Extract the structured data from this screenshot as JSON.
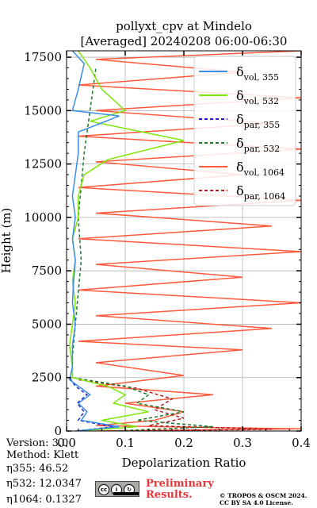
{
  "title": {
    "line1": "pollyxt_cpv at Mindelo",
    "line2": "[Averaged] 20240208 06:00-06:30"
  },
  "footer": {
    "version": "Version: 3.0",
    "method": "Method: Klett",
    "eta355": "η355:  46.52",
    "eta532": "η532: 12.0347",
    "eta1064": "η1064: 0.1327",
    "preliminary_line1": "Preliminary",
    "preliminary_line2": "Results.",
    "copyright_line1": "© TROPOS & OSCM 2024.",
    "copyright_line2": "CC BY SA 4.0 License.",
    "badge_icon": "cc-by-sa-icon"
  },
  "chart_data": {
    "type": "line",
    "xlabel": "Depolarization Ratio",
    "ylabel": "Height (m)",
    "xlim": [
      0.0,
      0.4
    ],
    "ylim": [
      0,
      17800
    ],
    "xticks": [
      0.0,
      0.1,
      0.2,
      0.3,
      0.4
    ],
    "xtick_labels": [
      "0.0",
      "0.1",
      "0.2",
      "0.3",
      "0.4"
    ],
    "yticks": [
      0,
      2500,
      5000,
      7500,
      10000,
      12500,
      15000,
      17500
    ],
    "ytick_labels": [
      "0",
      "2500",
      "5000",
      "7500",
      "10000",
      "12500",
      "15000",
      "17500"
    ],
    "grid": true,
    "legend_position": "top-right",
    "series": [
      {
        "name": "vol355",
        "legend_base": "δ",
        "legend_sub": "vol, 355",
        "color": "#3a8ee6",
        "dash": "solid",
        "points": [
          [
            0.015,
            0
          ],
          [
            0.09,
            200
          ],
          [
            0.025,
            500
          ],
          [
            0.035,
            900
          ],
          [
            0.02,
            1300
          ],
          [
            0.04,
            1700
          ],
          [
            0.02,
            2100
          ],
          [
            0.005,
            2400
          ],
          [
            0.01,
            3000
          ],
          [
            0.01,
            4000
          ],
          [
            0.015,
            5000
          ],
          [
            0.01,
            6000
          ],
          [
            0.012,
            7000
          ],
          [
            0.015,
            8000
          ],
          [
            0.01,
            9000
          ],
          [
            0.015,
            10000
          ],
          [
            0.01,
            11000
          ],
          [
            0.015,
            12000
          ],
          [
            0.02,
            13000
          ],
          [
            0.02,
            14000
          ],
          [
            0.09,
            14750
          ],
          [
            0.01,
            15000
          ],
          [
            0.02,
            16000
          ],
          [
            0.03,
            17200
          ],
          [
            0.01,
            17800
          ]
        ]
      },
      {
        "name": "vol532",
        "legend_base": "δ",
        "legend_sub": "vol, 532",
        "color": "#7fe60a",
        "dash": "solid",
        "points": [
          [
            0.02,
            0
          ],
          [
            0.12,
            200
          ],
          [
            0.06,
            500
          ],
          [
            0.14,
            900
          ],
          [
            0.08,
            1300
          ],
          [
            0.1,
            1700
          ],
          [
            0.07,
            2100
          ],
          [
            0.01,
            2500
          ],
          [
            0.01,
            3000
          ],
          [
            0.005,
            4000
          ],
          [
            0.01,
            5000
          ],
          [
            0.015,
            6000
          ],
          [
            0.01,
            7000
          ],
          [
            0.015,
            8000
          ],
          [
            0.01,
            9000
          ],
          [
            0.02,
            10000
          ],
          [
            0.02,
            11000
          ],
          [
            0.03,
            12000
          ],
          [
            0.07,
            12700
          ],
          [
            0.2,
            13600
          ],
          [
            0.04,
            14500
          ],
          [
            0.1,
            15000
          ],
          [
            0.06,
            16000
          ],
          [
            0.04,
            17000
          ],
          [
            0.02,
            17800
          ]
        ]
      },
      {
        "name": "par355",
        "legend_base": "δ",
        "legend_sub": "par, 355",
        "color": "#1f1fd6",
        "dash": "4,3",
        "points": [
          [
            0.018,
            0
          ],
          [
            0.08,
            200
          ],
          [
            0.02,
            500
          ],
          [
            0.03,
            900
          ],
          [
            0.018,
            1300
          ],
          [
            0.035,
            1700
          ],
          [
            0.015,
            2100
          ],
          [
            0.005,
            2500
          ]
        ]
      },
      {
        "name": "par532",
        "legend_base": "δ",
        "legend_sub": "par, 532",
        "color": "#1e7a2a",
        "dash": "4,3",
        "points": [
          [
            0.08,
            0
          ],
          [
            0.25,
            200
          ],
          [
            0.12,
            500
          ],
          [
            0.2,
            900
          ],
          [
            0.12,
            1300
          ],
          [
            0.14,
            1700
          ],
          [
            0.1,
            2100
          ],
          [
            0.01,
            2500
          ],
          [
            0.01,
            3500
          ],
          [
            0.015,
            5000
          ],
          [
            0.02,
            6500
          ],
          [
            0.025,
            8000
          ],
          [
            0.02,
            10000
          ],
          [
            0.03,
            13000
          ],
          [
            0.04,
            15000
          ],
          [
            0.05,
            17000
          ]
        ]
      },
      {
        "name": "vol1064",
        "legend_base": "δ",
        "legend_sub": "vol, 1064",
        "color": "#ff5a3c",
        "dash": "solid",
        "points": [
          [
            0.05,
            0
          ],
          [
            0.4,
            100
          ],
          [
            0.05,
            250
          ],
          [
            0.15,
            500
          ],
          [
            0.2,
            900
          ],
          [
            0.1,
            1300
          ],
          [
            0.25,
            1700
          ],
          [
            0.05,
            2100
          ],
          [
            0.2,
            2600
          ],
          [
            0.05,
            3200
          ],
          [
            0.3,
            3800
          ],
          [
            0.02,
            4200
          ],
          [
            0.35,
            4800
          ],
          [
            0.05,
            5400
          ],
          [
            0.4,
            6000
          ],
          [
            0.02,
            6600
          ],
          [
            0.3,
            7200
          ],
          [
            0.05,
            7800
          ],
          [
            0.4,
            8400
          ],
          [
            0.02,
            9000
          ],
          [
            0.35,
            9600
          ],
          [
            0.05,
            10200
          ],
          [
            0.4,
            10800
          ],
          [
            0.02,
            11400
          ],
          [
            0.3,
            12000
          ],
          [
            0.05,
            12600
          ],
          [
            0.4,
            13200
          ],
          [
            0.02,
            13800
          ],
          [
            0.35,
            14400
          ],
          [
            0.05,
            15000
          ],
          [
            0.4,
            15600
          ],
          [
            0.02,
            16200
          ],
          [
            0.3,
            16800
          ],
          [
            0.05,
            17400
          ],
          [
            0.4,
            17800
          ]
        ]
      },
      {
        "name": "par1064",
        "legend_base": "δ",
        "legend_sub": "par, 1064",
        "color": "#b51e1e",
        "dash": "4,3",
        "points": [
          [
            0.1,
            0
          ],
          [
            0.35,
            80
          ],
          [
            0.14,
            250
          ],
          [
            0.2,
            600
          ],
          [
            0.15,
            1000
          ],
          [
            0.18,
            1500
          ],
          [
            0.12,
            2000
          ],
          [
            0.02,
            2400
          ]
        ]
      }
    ]
  }
}
